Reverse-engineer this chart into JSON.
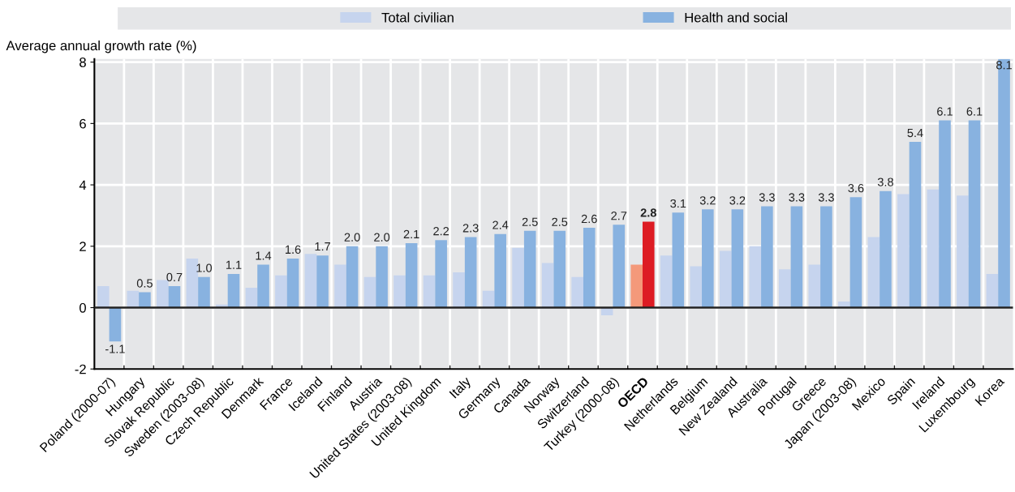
{
  "chart_data": {
    "type": "bar",
    "ylabel": "Average annual growth rate (%)",
    "categories": [
      "Poland (2000-07)",
      "Hungary",
      "Slovak Republic",
      "Sweden (2003-08)",
      "Czech Republic",
      "Denmark",
      "France",
      "Iceland",
      "Finland",
      "Austria",
      "United States (2003-08)",
      "United Kingdom",
      "Italy",
      "Germany",
      "Canada",
      "Norway",
      "Switzerland",
      "Turkey (2000-08)",
      "OECD",
      "Netherlands",
      "Belgium",
      "New Zealand",
      "Australia",
      "Portugal",
      "Greece",
      "Japan (2003-08)",
      "Mexico",
      "Spain",
      "Ireland",
      "Luxembourg",
      "Korea"
    ],
    "series": [
      {
        "name": "Total civilian",
        "color": "#c6d4ee",
        "colors": [
          "#c6d4ee",
          "#c6d4ee",
          "#c6d4ee",
          "#c6d4ee",
          "#c6d4ee",
          "#c6d4ee",
          "#c6d4ee",
          "#c6d4ee",
          "#c6d4ee",
          "#c6d4ee",
          "#c6d4ee",
          "#c6d4ee",
          "#c6d4ee",
          "#c6d4ee",
          "#c6d4ee",
          "#c6d4ee",
          "#c6d4ee",
          "#c6d4ee",
          "#f4997a",
          "#c6d4ee",
          "#c6d4ee",
          "#c6d4ee",
          "#c6d4ee",
          "#c6d4ee",
          "#c6d4ee",
          "#c6d4ee",
          "#c6d4ee",
          "#c6d4ee",
          "#c6d4ee",
          "#c6d4ee",
          "#c6d4ee"
        ],
        "values": [
          0.7,
          0.55,
          0.9,
          1.6,
          0.1,
          0.65,
          1.05,
          1.75,
          1.4,
          1.0,
          1.05,
          1.05,
          1.15,
          0.55,
          1.95,
          1.45,
          1.0,
          -0.25,
          1.4,
          1.7,
          1.35,
          1.85,
          2.0,
          1.25,
          1.4,
          0.2,
          2.3,
          3.7,
          3.85,
          3.65,
          1.1
        ]
      },
      {
        "name": "Health and social",
        "color": "#88b2e0",
        "colors": [
          "#88b2e0",
          "#88b2e0",
          "#88b2e0",
          "#88b2e0",
          "#88b2e0",
          "#88b2e0",
          "#88b2e0",
          "#88b2e0",
          "#88b2e0",
          "#88b2e0",
          "#88b2e0",
          "#88b2e0",
          "#88b2e0",
          "#88b2e0",
          "#88b2e0",
          "#88b2e0",
          "#88b2e0",
          "#88b2e0",
          "#dd1c24",
          "#88b2e0",
          "#88b2e0",
          "#88b2e0",
          "#88b2e0",
          "#88b2e0",
          "#88b2e0",
          "#88b2e0",
          "#88b2e0",
          "#88b2e0",
          "#88b2e0",
          "#88b2e0",
          "#88b2e0"
        ],
        "values": [
          -1.1,
          0.5,
          0.7,
          1.0,
          1.1,
          1.4,
          1.6,
          1.7,
          2.0,
          2.0,
          2.1,
          2.2,
          2.3,
          2.4,
          2.5,
          2.5,
          2.6,
          2.7,
          2.8,
          3.1,
          3.2,
          3.2,
          3.3,
          3.3,
          3.3,
          3.6,
          3.8,
          5.4,
          6.1,
          6.1,
          8.1
        ],
        "value_labels": [
          "-1.1",
          "0.5",
          "0.7",
          "1.0",
          "1.1",
          "1.4",
          "1.6",
          "1.7",
          "2.0",
          "2.0",
          "2.1",
          "2.2",
          "2.3",
          "2.4",
          "2.5",
          "2.5",
          "2.6",
          "2.7",
          "2.8",
          "3.1",
          "3.2",
          "3.2",
          "3.3",
          "3.3",
          "3.3",
          "3.6",
          "3.8",
          "5.4",
          "6.1",
          "6.1",
          "8.1"
        ]
      }
    ],
    "ylim": [
      -2,
      8.1
    ],
    "yticks": [
      -2,
      0,
      2,
      4,
      6,
      8
    ],
    "grid": true,
    "legend": "top"
  }
}
